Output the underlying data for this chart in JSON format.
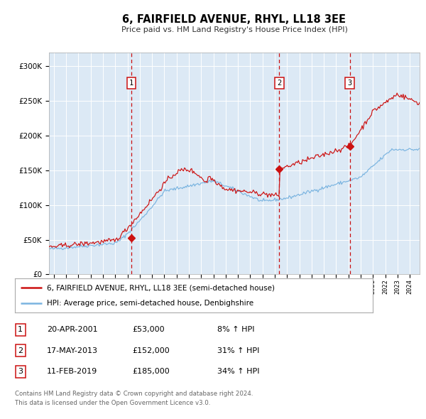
{
  "title": "6, FAIRFIELD AVENUE, RHYL, LL18 3EE",
  "subtitle": "Price paid vs. HM Land Registry's House Price Index (HPI)",
  "bg_color": "#dce9f5",
  "hpi_color": "#7ab4e0",
  "price_color": "#cc1111",
  "sale_marker_color": "#cc1111",
  "vline_color_red": "#cc1111",
  "vline_color_grey": "#cc1111",
  "sales": [
    {
      "date": 2001.3,
      "price": 53000,
      "label": "1"
    },
    {
      "date": 2013.37,
      "price": 152000,
      "label": "2"
    },
    {
      "date": 2019.11,
      "price": 185000,
      "label": "3"
    }
  ],
  "sale_info": [
    {
      "num": "1",
      "date": "20-APR-2001",
      "price": "£53,000",
      "hpi": "8% ↑ HPI"
    },
    {
      "num": "2",
      "date": "17-MAY-2013",
      "price": "£152,000",
      "hpi": "31% ↑ HPI"
    },
    {
      "num": "3",
      "date": "11-FEB-2019",
      "price": "£185,000",
      "hpi": "34% ↑ HPI"
    }
  ],
  "legend_line1": "6, FAIRFIELD AVENUE, RHYL, LL18 3EE (semi-detached house)",
  "legend_line2": "HPI: Average price, semi-detached house, Denbighshire",
  "footnote": "Contains HM Land Registry data © Crown copyright and database right 2024.\nThis data is licensed under the Open Government Licence v3.0.",
  "ylim": [
    0,
    320000
  ],
  "yticks": [
    0,
    50000,
    100000,
    150000,
    200000,
    250000,
    300000
  ],
  "xmin": 1994.6,
  "xmax": 2024.8
}
